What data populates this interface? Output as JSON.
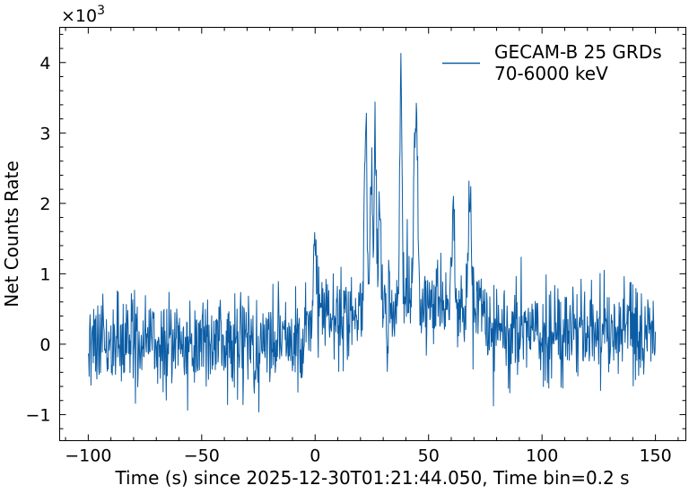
{
  "chart_data": {
    "type": "line",
    "title": "",
    "xlabel": "Time (s) since 2025-12-30T01:21:44.050, Time bin=0.2 s",
    "ylabel": "Net Counts Rate",
    "y_multiplier_label": "×10",
    "y_multiplier_exp": "3",
    "xlim": [
      -112.6,
      163.4
    ],
    "ylim": [
      -1.37,
      4.5
    ],
    "x_ticks": [
      -100,
      -50,
      0,
      50,
      100,
      150
    ],
    "x_tick_labels": [
      "−100",
      "−50",
      "0",
      "50",
      "100",
      "150"
    ],
    "y_ticks": [
      -1,
      0,
      1,
      2,
      3,
      4
    ],
    "y_tick_labels": [
      "−1",
      "0",
      "1",
      "2",
      "3",
      "4"
    ],
    "x_minor_step": 10,
    "y_minor_step": 0.2,
    "grid": false,
    "legend": {
      "placement": "top-right",
      "entries": [
        {
          "label": "GECAM-B 25 GRDs",
          "label2": "70-6000 keV"
        }
      ]
    },
    "series": [
      {
        "name": "GECAM-B 25 GRDs 70-6000 keV",
        "color": "#0c5da5",
        "x_start": -100,
        "x_end": 150,
        "bin": 0.2,
        "noise_sigma": 0.33,
        "baseline_segments": [
          {
            "from": -100,
            "to": -5,
            "level": 0.0
          },
          {
            "from": -5,
            "to": 20,
            "level": 0.4
          },
          {
            "from": 20,
            "to": 75,
            "level": 0.6
          },
          {
            "from": 75,
            "to": 150,
            "level": 0.15
          }
        ],
        "pulses": [
          {
            "t": 0,
            "amp": 1.5,
            "width": 0.5
          },
          {
            "t": 22.3,
            "amp": 3.5,
            "width": 0.6
          },
          {
            "t": 24.8,
            "amp": 2.4,
            "width": 0.5
          },
          {
            "t": 26.5,
            "amp": 2.7,
            "width": 0.6
          },
          {
            "t": 28.6,
            "amp": 1.6,
            "width": 0.5
          },
          {
            "t": 37.8,
            "amp": 3.6,
            "width": 0.5
          },
          {
            "t": 43.8,
            "amp": 2.3,
            "width": 0.5
          },
          {
            "t": 44.8,
            "amp": 2.7,
            "width": 0.5
          },
          {
            "t": 60.8,
            "amp": 1.8,
            "width": 0.5
          },
          {
            "t": 68.2,
            "amp": 2.4,
            "width": 0.5
          }
        ]
      }
    ]
  }
}
